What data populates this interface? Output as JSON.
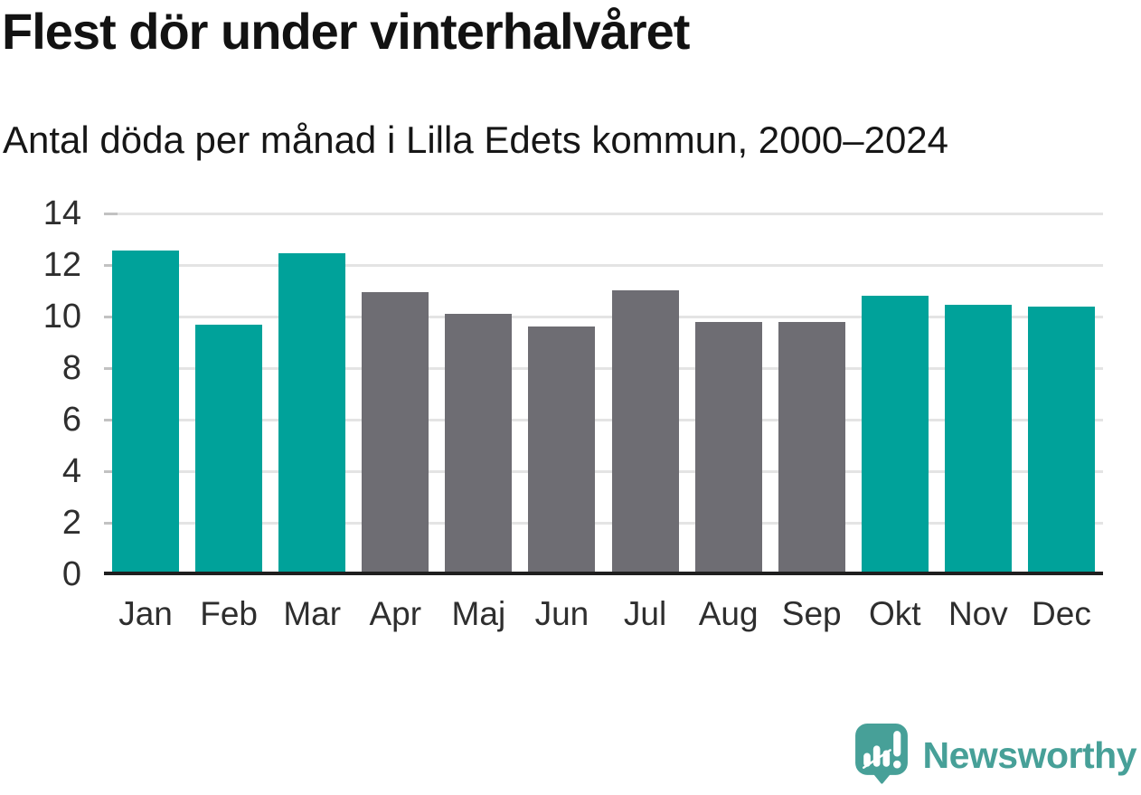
{
  "header": {
    "title": "Flest dör under vinterhalvåret",
    "subtitle": "Antal döda per månad i Lilla Edets kommun, 2000–2024"
  },
  "chart_data": {
    "type": "bar",
    "title": "Flest dör under vinterhalvåret",
    "subtitle": "Antal döda per månad i Lilla Edets kommun, 2000–2024",
    "categories": [
      "Jan",
      "Feb",
      "Mar",
      "Apr",
      "Maj",
      "Jun",
      "Jul",
      "Aug",
      "Sep",
      "Okt",
      "Nov",
      "Dec"
    ],
    "values": [
      12.55,
      9.7,
      12.45,
      10.95,
      10.1,
      9.6,
      11.0,
      9.8,
      9.8,
      10.8,
      10.45,
      10.4
    ],
    "bar_colors": [
      "#00a29a",
      "#00a29a",
      "#00a29a",
      "#6e6d73",
      "#6e6d73",
      "#6e6d73",
      "#6e6d73",
      "#6e6d73",
      "#6e6d73",
      "#00a29a",
      "#00a29a",
      "#00a29a"
    ],
    "xlabel": "",
    "ylabel": "",
    "ylim": [
      0,
      14
    ],
    "yticks": [
      0,
      2,
      4,
      6,
      8,
      10,
      12,
      14
    ],
    "grid": true,
    "legend": "none"
  },
  "colors": {
    "winter_bar": "#00a29a",
    "summer_bar": "#6e6d73",
    "gridline": "#e4e4e4",
    "axis_line": "#1f1f1f",
    "text": "#121212",
    "brand_teal": "#47a098"
  },
  "footer": {
    "brand": "Newsworthy"
  }
}
